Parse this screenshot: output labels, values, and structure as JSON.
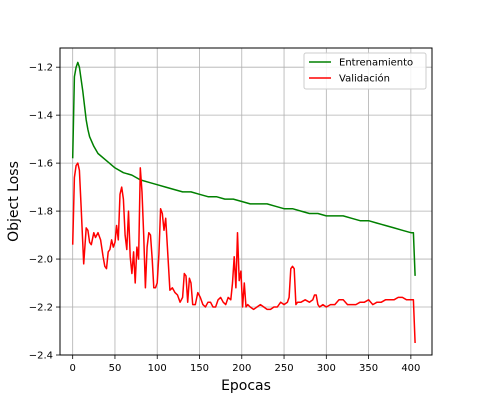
{
  "chart_data": {
    "type": "line",
    "title": "",
    "xlabel": "Epocas",
    "ylabel": "Object Loss",
    "xlim": [
      -15,
      425
    ],
    "ylim": [
      -2.4,
      -1.12
    ],
    "xticks": [
      0,
      50,
      100,
      150,
      200,
      250,
      300,
      350,
      400
    ],
    "yticks": [
      -2.4,
      -2.2,
      -2.0,
      -1.8,
      -1.6,
      -1.4,
      -1.2
    ],
    "ytick_labels": [
      "−2.4",
      "−2.2",
      "−2.0",
      "−1.8",
      "−1.6",
      "−1.4",
      "−1.2"
    ],
    "grid": true,
    "legend_position": "top-right",
    "series": [
      {
        "name": "Entrenamiento",
        "color": "#008000",
        "x": [
          0,
          2,
          4,
          6,
          8,
          10,
          12,
          14,
          16,
          18,
          20,
          25,
          30,
          40,
          50,
          60,
          70,
          80,
          90,
          100,
          110,
          120,
          130,
          140,
          150,
          160,
          170,
          180,
          190,
          200,
          210,
          220,
          230,
          240,
          250,
          260,
          270,
          280,
          290,
          300,
          310,
          320,
          330,
          340,
          350,
          360,
          370,
          380,
          390,
          400,
          403,
          405
        ],
        "y": [
          -1.58,
          -1.24,
          -1.2,
          -1.18,
          -1.2,
          -1.25,
          -1.3,
          -1.36,
          -1.42,
          -1.46,
          -1.49,
          -1.53,
          -1.56,
          -1.59,
          -1.62,
          -1.64,
          -1.65,
          -1.67,
          -1.68,
          -1.69,
          -1.7,
          -1.71,
          -1.72,
          -1.72,
          -1.73,
          -1.74,
          -1.74,
          -1.75,
          -1.75,
          -1.76,
          -1.77,
          -1.77,
          -1.77,
          -1.78,
          -1.79,
          -1.79,
          -1.8,
          -1.81,
          -1.81,
          -1.82,
          -1.82,
          -1.82,
          -1.83,
          -1.84,
          -1.84,
          -1.85,
          -1.86,
          -1.87,
          -1.88,
          -1.89,
          -1.89,
          -2.07
        ]
      },
      {
        "name": "Validación",
        "color": "#ff0000",
        "x": [
          0,
          2,
          4,
          6,
          8,
          10,
          13,
          16,
          18,
          20,
          22,
          25,
          27,
          30,
          33,
          36,
          38,
          40,
          42,
          44,
          46,
          48,
          50,
          52,
          54,
          56,
          58,
          60,
          62,
          64,
          66,
          68,
          70,
          72,
          74,
          76,
          78,
          80,
          82,
          84,
          86,
          88,
          90,
          92,
          94,
          96,
          98,
          100,
          102,
          104,
          106,
          108,
          110,
          112,
          115,
          118,
          121,
          124,
          127,
          130,
          132,
          134,
          136,
          138,
          140,
          142,
          145,
          148,
          151,
          154,
          157,
          160,
          163,
          166,
          169,
          172,
          175,
          178,
          181,
          184,
          187,
          189,
          191,
          193,
          195,
          197,
          199,
          201,
          203,
          205,
          207,
          210,
          214,
          218,
          222,
          226,
          230,
          234,
          238,
          242,
          246,
          250,
          254,
          256,
          258,
          260,
          262,
          264,
          266,
          270,
          275,
          280,
          284,
          286,
          288,
          290,
          292,
          296,
          300,
          305,
          310,
          315,
          320,
          325,
          330,
          335,
          340,
          345,
          350,
          355,
          360,
          365,
          370,
          375,
          380,
          385,
          390,
          395,
          400,
          403,
          405
        ],
        "y": [
          -1.94,
          -1.66,
          -1.61,
          -1.6,
          -1.63,
          -1.78,
          -2.02,
          -1.87,
          -1.88,
          -1.93,
          -1.94,
          -1.89,
          -1.91,
          -1.89,
          -1.92,
          -1.99,
          -2.03,
          -2.04,
          -1.97,
          -1.96,
          -1.92,
          -1.95,
          -1.93,
          -1.86,
          -1.92,
          -1.73,
          -1.7,
          -1.75,
          -1.9,
          -1.96,
          -1.8,
          -1.99,
          -2.06,
          -1.97,
          -2.1,
          -1.95,
          -2.0,
          -1.62,
          -1.72,
          -1.9,
          -2.12,
          -1.95,
          -1.89,
          -1.9,
          -2.0,
          -2.12,
          -2.12,
          -2.1,
          -1.98,
          -1.79,
          -1.81,
          -1.88,
          -1.83,
          -1.95,
          -2.13,
          -2.12,
          -2.14,
          -2.15,
          -2.18,
          -2.16,
          -2.06,
          -2.07,
          -2.18,
          -2.08,
          -2.1,
          -2.19,
          -2.19,
          -2.14,
          -2.16,
          -2.19,
          -2.2,
          -2.18,
          -2.18,
          -2.2,
          -2.2,
          -2.17,
          -2.16,
          -2.18,
          -2.19,
          -2.16,
          -2.17,
          -2.1,
          -1.99,
          -2.12,
          -1.89,
          -2.09,
          -2.05,
          -2.2,
          -2.1,
          -2.2,
          -2.19,
          -2.2,
          -2.21,
          -2.2,
          -2.19,
          -2.2,
          -2.21,
          -2.21,
          -2.2,
          -2.2,
          -2.18,
          -2.19,
          -2.18,
          -2.16,
          -2.04,
          -2.03,
          -2.04,
          -2.19,
          -2.18,
          -2.18,
          -2.17,
          -2.18,
          -2.17,
          -2.15,
          -2.15,
          -2.19,
          -2.2,
          -2.19,
          -2.2,
          -2.19,
          -2.19,
          -2.17,
          -2.17,
          -2.19,
          -2.19,
          -2.19,
          -2.18,
          -2.18,
          -2.17,
          -2.19,
          -2.18,
          -2.18,
          -2.17,
          -2.17,
          -2.17,
          -2.16,
          -2.16,
          -2.17,
          -2.17,
          -2.17,
          -2.35
        ]
      }
    ]
  }
}
